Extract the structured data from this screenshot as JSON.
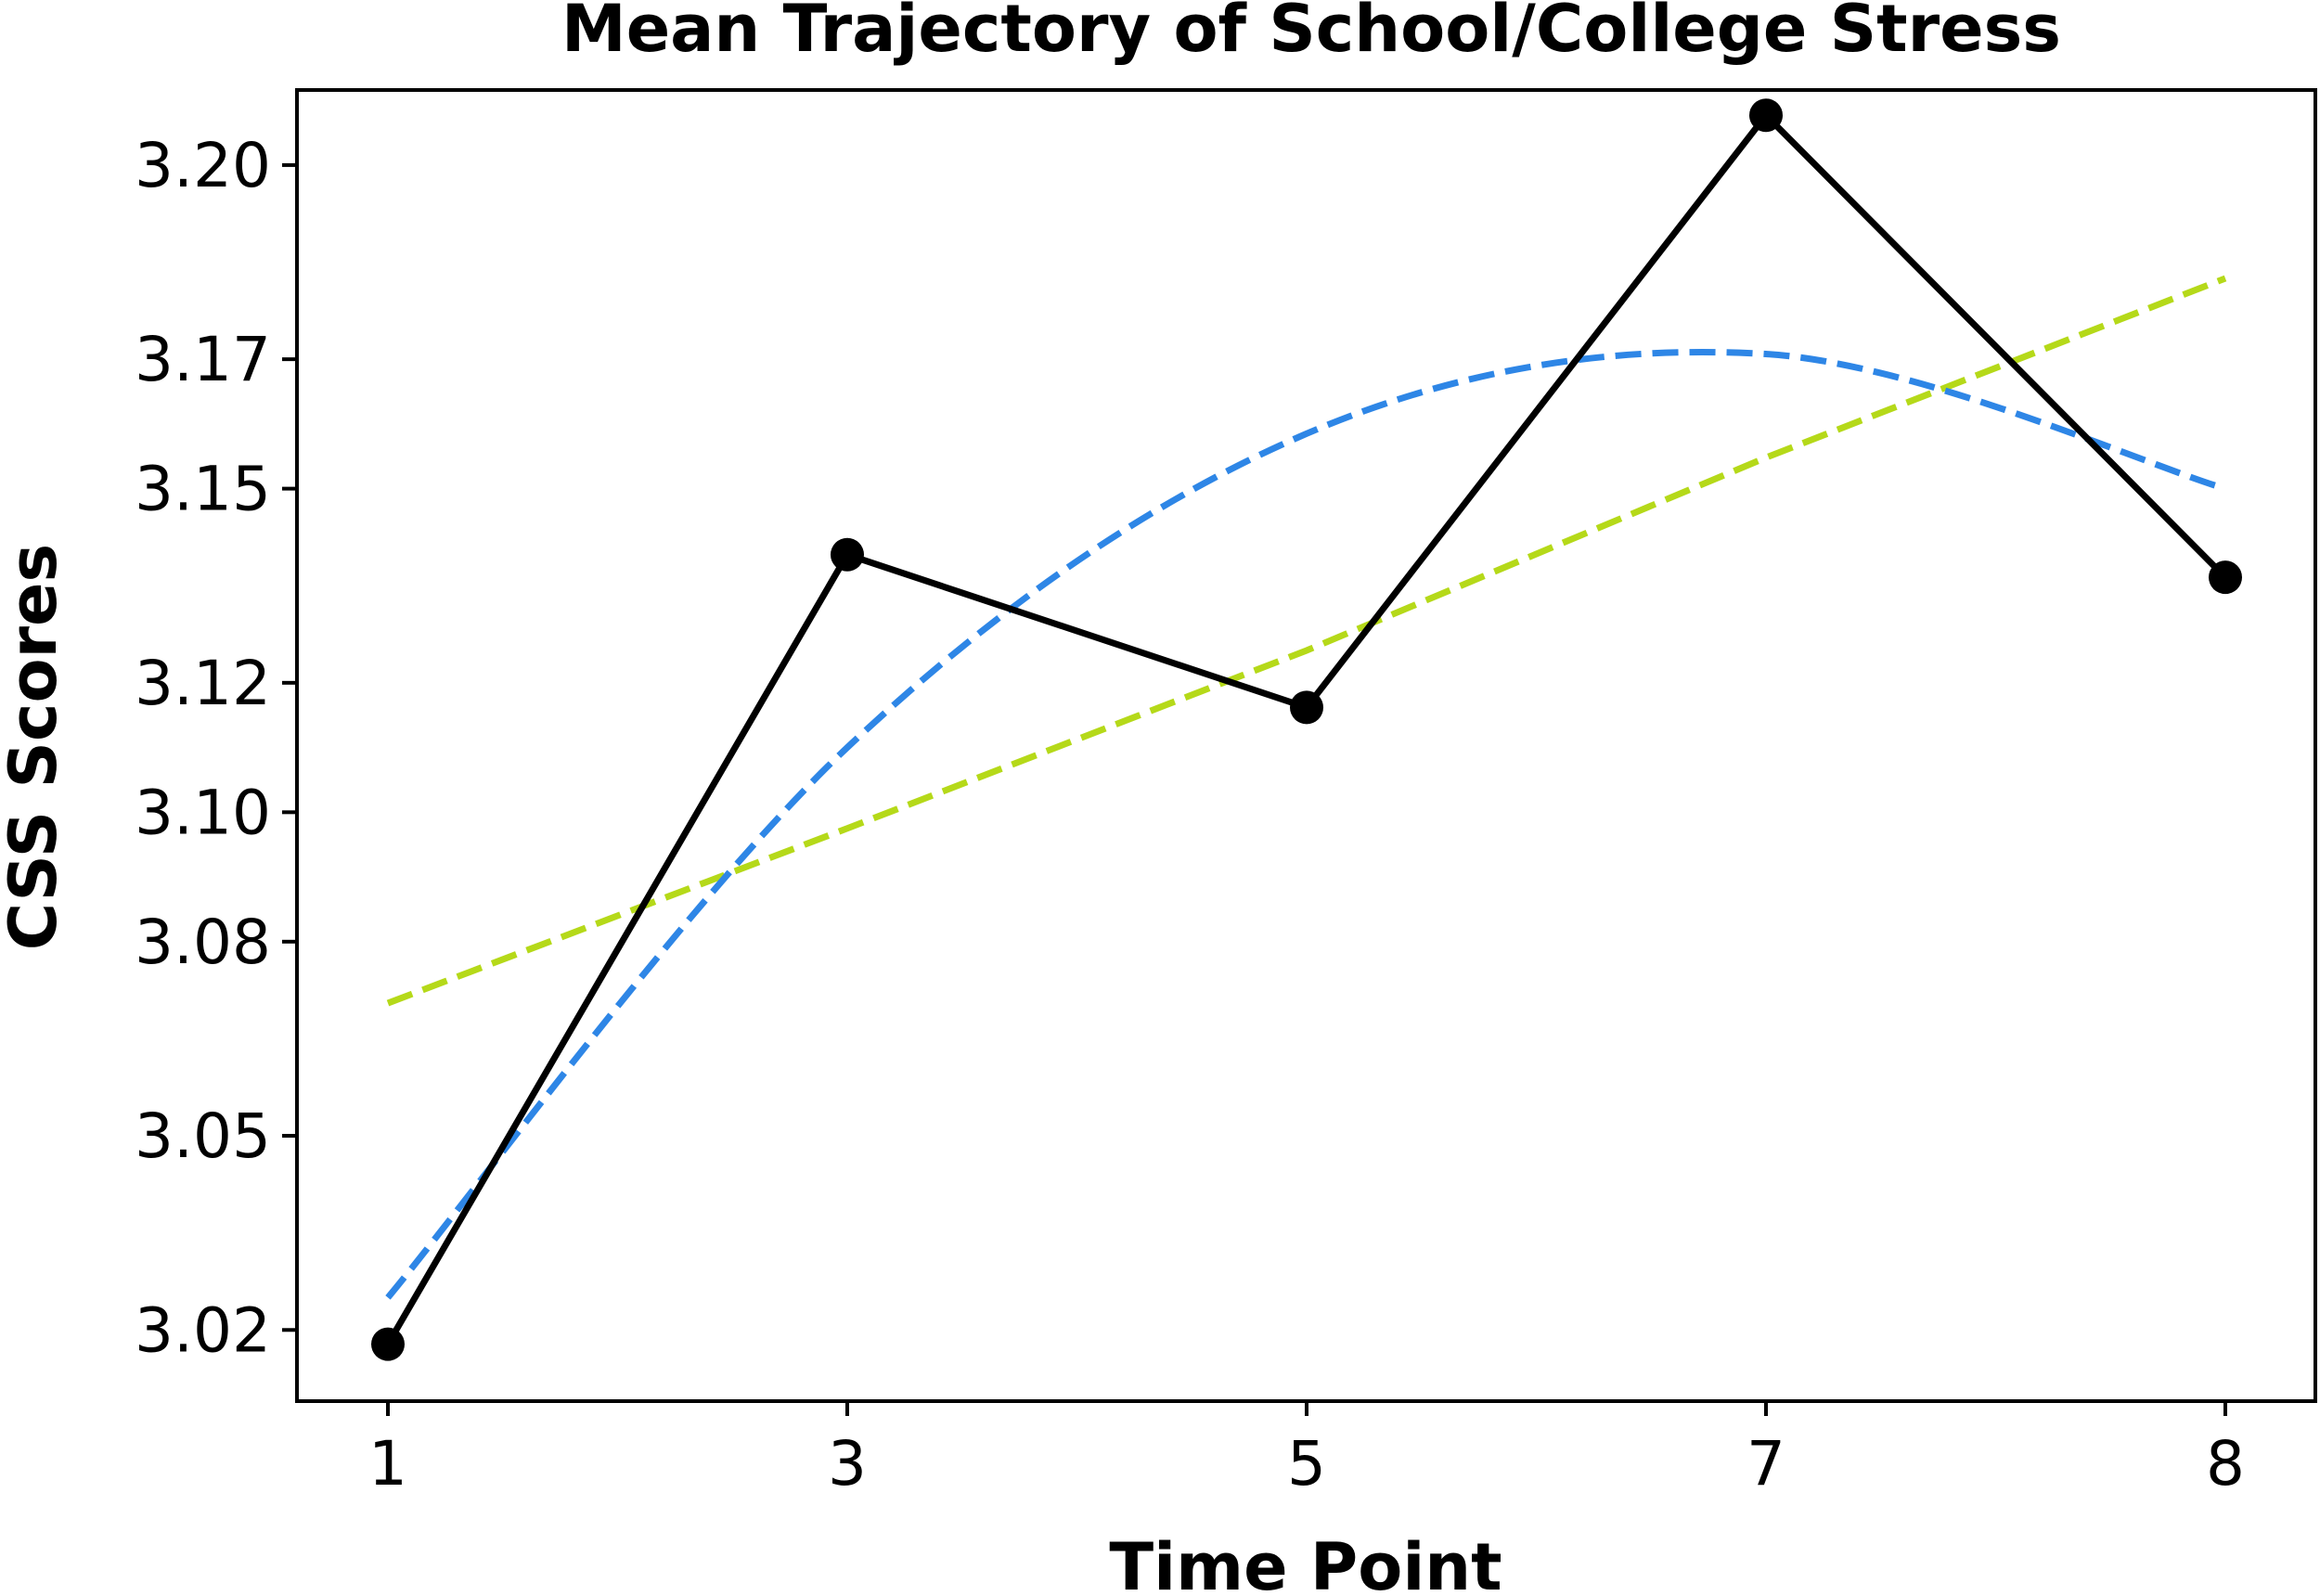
{
  "chart_data": {
    "type": "line",
    "title": "Mean Trajectory of School/College Stress",
    "xlabel": "Time Point",
    "ylabel": "CSS Scores",
    "x_ticks": [
      "1",
      "3",
      "5",
      "7",
      "8"
    ],
    "y_ticks": [
      "3.02",
      "3.05",
      "3.08",
      "3.10",
      "3.12",
      "3.15",
      "3.17",
      "3.20"
    ],
    "ylim": [
      3.009,
      3.2116
    ],
    "grid": false,
    "legend": "none",
    "series": [
      {
        "style": "solid-markers",
        "color": "#000000",
        "values": [
          3.0178,
          3.1398,
          3.1162,
          3.2077,
          3.1363
        ]
      },
      {
        "style": "dashed-quadratic-fit",
        "color": "#2e86e6",
        "values": [
          3.025,
          3.11,
          3.1585,
          3.1708,
          3.15
        ]
      },
      {
        "style": "dashed-linear-fit",
        "color": "#b5d919",
        "values": [
          3.0705,
          3.0975,
          3.125,
          3.1548,
          3.1825
        ]
      }
    ]
  }
}
